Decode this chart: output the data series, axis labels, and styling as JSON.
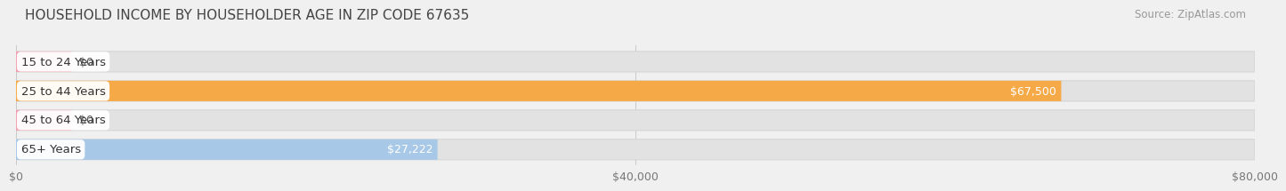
{
  "title": "HOUSEHOLD INCOME BY HOUSEHOLDER AGE IN ZIP CODE 67635",
  "source": "Source: ZipAtlas.com",
  "categories": [
    "15 to 24 Years",
    "25 to 44 Years",
    "45 to 64 Years",
    "65+ Years"
  ],
  "values": [
    0,
    67500,
    0,
    27222
  ],
  "bar_colors": [
    "#f4a0b0",
    "#f5a947",
    "#f4a0b0",
    "#a8c8e8"
  ],
  "value_labels": [
    "$0",
    "$67,500",
    "$0",
    "$27,222"
  ],
  "xlim": [
    0,
    80000
  ],
  "xticks": [
    0,
    40000,
    80000
  ],
  "xtick_labels": [
    "$0",
    "$40,000",
    "$80,000"
  ],
  "background_color": "#f0f0f0",
  "bar_bg_color": "#e2e2e2",
  "bar_bg_edge_color": "#d5d5d5",
  "title_fontsize": 11,
  "source_fontsize": 8.5,
  "label_fontsize": 9.5,
  "value_fontsize": 9
}
